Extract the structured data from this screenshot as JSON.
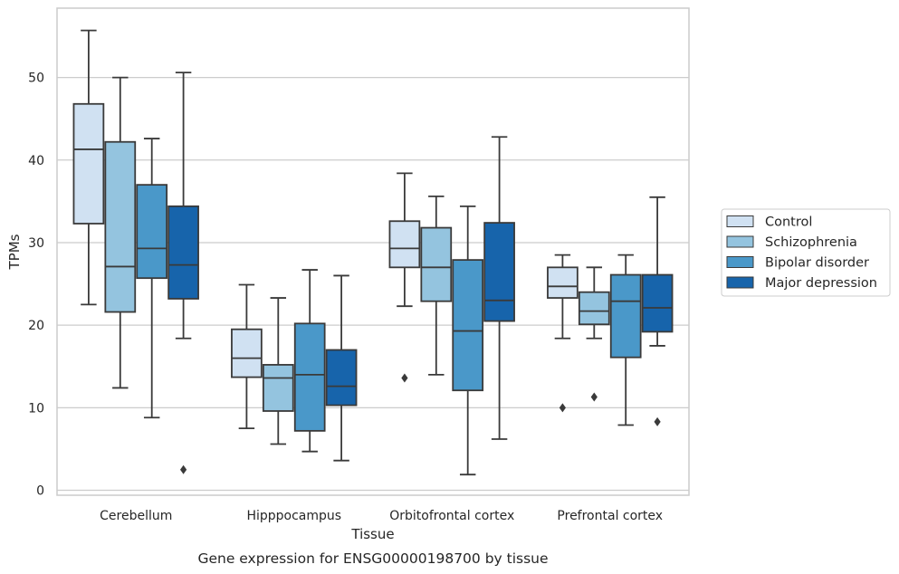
{
  "chart_data": {
    "type": "boxplot",
    "caption": "Gene expression for ENSG00000198700 by tissue",
    "xlabel": "Tissue",
    "ylabel": "TPMs",
    "ylim": [
      -0.6,
      58.4
    ],
    "yticks": [
      0,
      10,
      20,
      30,
      40,
      50
    ],
    "grid": "horizontal",
    "legend_position": "right-center",
    "categories": [
      "Cerebellum",
      "Hipppocampus",
      "Orbitofrontal cortex",
      "Prefrontal cortex"
    ],
    "series": [
      {
        "name": "Control",
        "color": "#d0e1f2",
        "boxes": [
          {
            "whisker_low": 22.5,
            "q1": 32.3,
            "median": 41.3,
            "q3": 46.8,
            "whisker_high": 55.7,
            "outliers": []
          },
          {
            "whisker_low": 7.5,
            "q1": 13.7,
            "median": 16.0,
            "q3": 19.5,
            "whisker_high": 24.9,
            "outliers": []
          },
          {
            "whisker_low": 22.3,
            "q1": 27.0,
            "median": 29.3,
            "q3": 32.6,
            "whisker_high": 38.4,
            "outliers": [
              13.6
            ]
          },
          {
            "whisker_low": 18.4,
            "q1": 23.3,
            "median": 24.7,
            "q3": 27.0,
            "whisker_high": 28.5,
            "outliers": [
              10.0
            ]
          }
        ]
      },
      {
        "name": "Schizophrenia",
        "color": "#94c4df",
        "boxes": [
          {
            "whisker_low": 12.4,
            "q1": 21.6,
            "median": 27.1,
            "q3": 42.2,
            "whisker_high": 50.0,
            "outliers": []
          },
          {
            "whisker_low": 5.6,
            "q1": 9.6,
            "median": 13.6,
            "q3": 15.2,
            "whisker_high": 23.3,
            "outliers": []
          },
          {
            "whisker_low": 14.0,
            "q1": 22.9,
            "median": 27.0,
            "q3": 31.8,
            "whisker_high": 35.6,
            "outliers": []
          },
          {
            "whisker_low": 18.4,
            "q1": 20.1,
            "median": 21.7,
            "q3": 24.0,
            "whisker_high": 27.0,
            "outliers": [
              11.3
            ]
          }
        ]
      },
      {
        "name": "Bipolar disorder",
        "color": "#4a98c9",
        "boxes": [
          {
            "whisker_low": 8.8,
            "q1": 25.7,
            "median": 29.3,
            "q3": 37.0,
            "whisker_high": 42.6,
            "outliers": []
          },
          {
            "whisker_low": 4.7,
            "q1": 7.2,
            "median": 14.0,
            "q3": 20.2,
            "whisker_high": 26.7,
            "outliers": []
          },
          {
            "whisker_low": 1.9,
            "q1": 12.1,
            "median": 19.3,
            "q3": 27.9,
            "whisker_high": 34.4,
            "outliers": []
          },
          {
            "whisker_low": 7.9,
            "q1": 16.1,
            "median": 22.9,
            "q3": 26.1,
            "whisker_high": 28.5,
            "outliers": []
          }
        ]
      },
      {
        "name": "Major depression",
        "color": "#1764ab",
        "boxes": [
          {
            "whisker_low": 18.4,
            "q1": 23.2,
            "median": 27.3,
            "q3": 34.4,
            "whisker_high": 50.6,
            "outliers": [
              2.5
            ]
          },
          {
            "whisker_low": 3.6,
            "q1": 10.3,
            "median": 12.6,
            "q3": 17.0,
            "whisker_high": 26.0,
            "outliers": []
          },
          {
            "whisker_low": 6.2,
            "q1": 20.5,
            "median": 23.0,
            "q3": 32.4,
            "whisker_high": 42.8,
            "outliers": []
          },
          {
            "whisker_low": 17.5,
            "q1": 19.2,
            "median": 22.1,
            "q3": 26.1,
            "whisker_high": 35.5,
            "outliers": [
              8.3
            ]
          }
        ]
      }
    ]
  }
}
